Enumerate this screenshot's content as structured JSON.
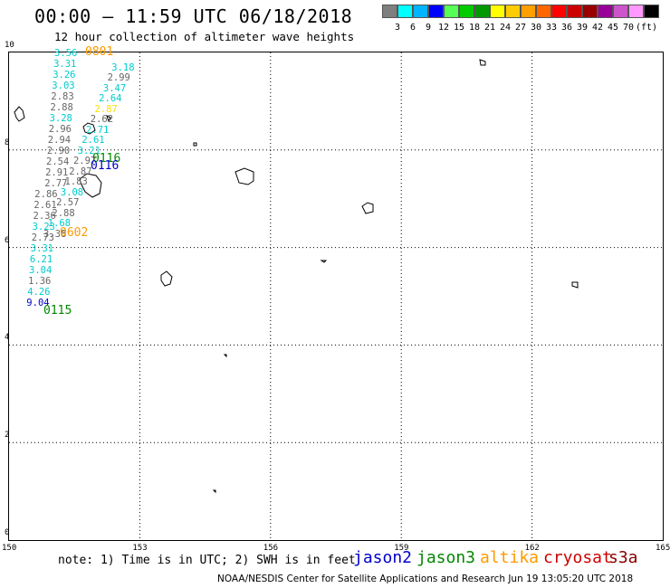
{
  "title": "00:00 – 11:59 UTC 06/18/2018",
  "subtitle": "12 hour collection of altimeter wave heights",
  "legend": {
    "unit": "(ft)",
    "colors": [
      "#7f7f7f",
      "#00ffff",
      "#00b4ff",
      "#0000ff",
      "#55ff55",
      "#00cc00",
      "#009900",
      "#ffff00",
      "#ffcc00",
      "#ffa000",
      "#ff6600",
      "#ff0000",
      "#cc0000",
      "#990000",
      "#990099",
      "#cc55cc",
      "#ff99ff",
      "#000000"
    ],
    "ticks": [
      "3",
      "6",
      "9",
      "12",
      "15",
      "18",
      "21",
      "24",
      "27",
      "30",
      "33",
      "36",
      "39",
      "42",
      "45",
      "70"
    ]
  },
  "axes": {
    "x_ticks": [
      "150",
      "153",
      "156",
      "159",
      "162",
      "165"
    ],
    "y_ticks": [
      "0",
      "2",
      "4",
      "6",
      "8",
      "10"
    ],
    "xlim": [
      150,
      165
    ],
    "ylim": [
      0,
      10
    ]
  },
  "passes": [
    {
      "label": "0801",
      "color": "#ff9900"
    },
    {
      "label": "0116",
      "color": "#008800"
    },
    {
      "label": "0116",
      "color": "#0000cc"
    },
    {
      "label": "0602",
      "color": "#ff9900"
    },
    {
      "label": "0115",
      "color": "#008800"
    }
  ],
  "observations": [
    {
      "t": "3.56",
      "c": "#00cccc"
    },
    {
      "t": "3.31",
      "c": "#00cccc"
    },
    {
      "t": "3.26",
      "c": "#00cccc"
    },
    {
      "t": "3.03",
      "c": "#00cccc"
    },
    {
      "t": "2.83",
      "c": "#666666"
    },
    {
      "t": "2.88",
      "c": "#666666"
    },
    {
      "t": "3.28",
      "c": "#00cccc"
    },
    {
      "t": "2.96",
      "c": "#666666"
    },
    {
      "t": "2.94",
      "c": "#666666"
    },
    {
      "t": "2.90",
      "c": "#666666"
    },
    {
      "t": "2.54",
      "c": "#666666"
    },
    {
      "t": "2.91",
      "c": "#666666"
    },
    {
      "t": "2.77",
      "c": "#666666"
    },
    {
      "t": "2.86",
      "c": "#666666"
    },
    {
      "t": "2.61",
      "c": "#666666"
    },
    {
      "t": "2.36",
      "c": "#666666"
    },
    {
      "t": "3.23",
      "c": "#00cccc"
    },
    {
      "t": "2.73",
      "c": "#666666"
    },
    {
      "t": "3.31",
      "c": "#00cccc"
    },
    {
      "t": "6.21",
      "c": "#00cccc"
    },
    {
      "t": "3.04",
      "c": "#00cccc"
    },
    {
      "t": "1.36",
      "c": "#666666"
    },
    {
      "t": "4.26",
      "c": "#00cccc"
    },
    {
      "t": "9.04",
      "c": "#0000cc"
    },
    {
      "t": "3.38",
      "c": "#666666"
    },
    {
      "t": "1.68",
      "c": "#00cccc"
    },
    {
      "t": "2.88",
      "c": "#666666"
    },
    {
      "t": "2.57",
      "c": "#666666"
    },
    {
      "t": "3.08",
      "c": "#00cccc"
    },
    {
      "t": "1.83",
      "c": "#666666"
    },
    {
      "t": "2.87",
      "c": "#666666"
    },
    {
      "t": "2.97",
      "c": "#666666"
    },
    {
      "t": "3.21",
      "c": "#00cccc"
    },
    {
      "t": "2.61",
      "c": "#00cccc"
    },
    {
      "t": "2.71",
      "c": "#00cccc"
    },
    {
      "t": "2.62",
      "c": "#666666"
    },
    {
      "t": "2.87",
      "c": "#ffdd00"
    },
    {
      "t": "2.64",
      "c": "#00cccc"
    },
    {
      "t": "3.47",
      "c": "#00cccc"
    },
    {
      "t": "2.99",
      "c": "#666666"
    },
    {
      "t": "3.18",
      "c": "#00cccc"
    }
  ],
  "note": "note: 1) Time is in UTC; 2) SWH is in feet",
  "satellites": [
    {
      "name": "jason2",
      "color": "#0000cc"
    },
    {
      "name": "jason3",
      "color": "#008800"
    },
    {
      "name": "altika",
      "color": "#ff9900"
    },
    {
      "name": "cryosat",
      "color": "#cc0000"
    },
    {
      "name": "s3a",
      "color": "#880000"
    }
  ],
  "credit": "NOAA/NESDIS Center for Satellite Applications and Research    Jun 19 13:05:20 UTC 2018"
}
